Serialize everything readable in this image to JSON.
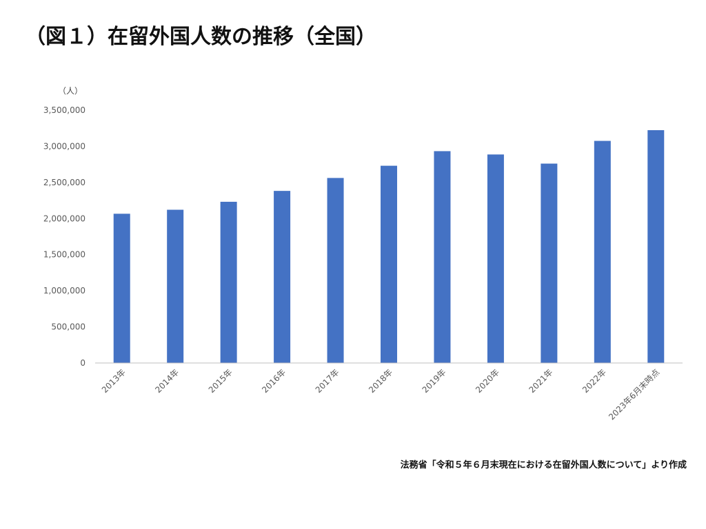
{
  "title": "（図１）在留外国人数の推移（全国）",
  "unit_label": "（人）",
  "source": "法務省「令和５年６月末現在における在留外国人数について」より作成",
  "colors": {
    "bar": "#4472C4",
    "axis": "#BFBFBF",
    "text": "#595959"
  },
  "chart_data": {
    "type": "bar",
    "title": "（図１）在留外国人数の推移（全国）",
    "ylabel": "（人）",
    "xlabel": "",
    "categories": [
      "2013年",
      "2014年",
      "2015年",
      "2016年",
      "2017年",
      "2018年",
      "2019年",
      "2020年",
      "2021年",
      "2022年",
      "2023年6月末時点"
    ],
    "values": [
      2066445,
      2121831,
      2232189,
      2382822,
      2561848,
      2731093,
      2933137,
      2887116,
      2760635,
      3075213,
      3223858
    ],
    "ylim": [
      0,
      3500000
    ],
    "yticks": [
      0,
      500000,
      1000000,
      1500000,
      2000000,
      2500000,
      3000000,
      3500000
    ],
    "ytick_labels": [
      "0",
      "500,000",
      "1,000,000",
      "1,500,000",
      "2,000,000",
      "2,500,000",
      "3,000,000",
      "3,500,000"
    ],
    "grid": false,
    "legend": "none"
  }
}
